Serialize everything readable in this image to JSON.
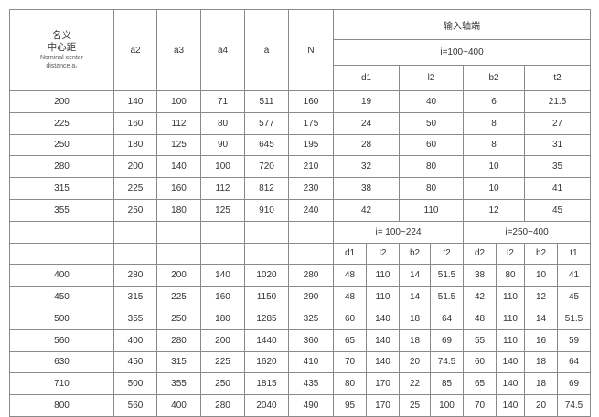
{
  "header": {
    "nominal_cn_1": "名义",
    "nominal_cn_2": "中心距",
    "nominal_en_1": "Nominal center",
    "nominal_en_2": "distance a₁",
    "cols": [
      "a2",
      "a3",
      "a4",
      "a",
      "N"
    ],
    "input_shaft": "输入轴端",
    "ratio_top": "i=100~400",
    "sub_top": [
      "d1",
      "l2",
      "b2",
      "t2"
    ]
  },
  "rows_top": [
    [
      "200",
      "140",
      "100",
      "71",
      "511",
      "160",
      "19",
      "40",
      "6",
      "21.5"
    ],
    [
      "225",
      "160",
      "112",
      "80",
      "577",
      "175",
      "24",
      "50",
      "8",
      "27"
    ],
    [
      "250",
      "180",
      "125",
      "90",
      "645",
      "195",
      "28",
      "60",
      "8",
      "31"
    ],
    [
      "280",
      "200",
      "140",
      "100",
      "720",
      "210",
      "32",
      "80",
      "10",
      "35"
    ],
    [
      "315",
      "225",
      "160",
      "112",
      "812",
      "230",
      "38",
      "80",
      "10",
      "41"
    ],
    [
      "355",
      "250",
      "180",
      "125",
      "910",
      "240",
      "42",
      "110",
      "12",
      "45"
    ]
  ],
  "header2": {
    "ratio_a": "i= 100~224",
    "ratio_b": "i=250~400",
    "sub": [
      "d1",
      "l2",
      "b2",
      "t2",
      "d2",
      "l2",
      "b2",
      "t1"
    ]
  },
  "rows_bottom": [
    [
      "400",
      "280",
      "200",
      "140",
      "1020",
      "280",
      "48",
      "110",
      "14",
      "51.5",
      "38",
      "80",
      "10",
      "41"
    ],
    [
      "450",
      "315",
      "225",
      "160",
      "1150",
      "290",
      "48",
      "110",
      "14",
      "51.5",
      "42",
      "110",
      "12",
      "45"
    ],
    [
      "500",
      "355",
      "250",
      "180",
      "1285",
      "325",
      "60",
      "140",
      "18",
      "64",
      "48",
      "110",
      "14",
      "51.5"
    ],
    [
      "560",
      "400",
      "280",
      "200",
      "1440",
      "360",
      "65",
      "140",
      "18",
      "69",
      "55",
      "110",
      "16",
      "59"
    ],
    [
      "630",
      "450",
      "315",
      "225",
      "1620",
      "410",
      "70",
      "140",
      "20",
      "74.5",
      "60",
      "140",
      "18",
      "64"
    ],
    [
      "710",
      "500",
      "355",
      "250",
      "1815",
      "435",
      "80",
      "170",
      "22",
      "85",
      "65",
      "140",
      "18",
      "69"
    ],
    [
      "800",
      "560",
      "400",
      "280",
      "2040",
      "490",
      "95",
      "170",
      "25",
      "100",
      "70",
      "140",
      "20",
      "74.5"
    ]
  ]
}
